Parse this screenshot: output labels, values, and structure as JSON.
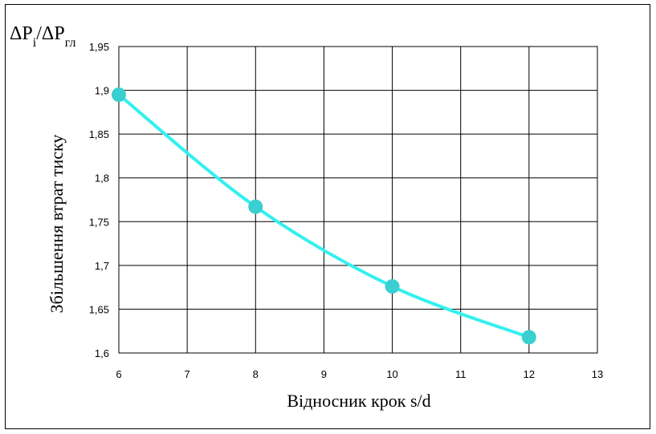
{
  "chart_data": {
    "type": "line",
    "corner_label": {
      "main": "ΔP",
      "sub1": "i",
      "slash": "/ΔP",
      "sub2": "гл"
    },
    "xlabel": "Відносник крок s/d",
    "ylabel": "Збільшення втрат тиску",
    "xlim": [
      6,
      13
    ],
    "ylim": [
      1.6,
      1.95
    ],
    "xticks": [
      6,
      7,
      8,
      9,
      10,
      11,
      12,
      13
    ],
    "xtick_labels": [
      "6",
      "7",
      "8",
      "9",
      "10",
      "11",
      "12",
      "13"
    ],
    "yticks": [
      1.6,
      1.65,
      1.7,
      1.75,
      1.8,
      1.85,
      1.9,
      1.95
    ],
    "ytick_labels": [
      "1,6",
      "1,65",
      "1,7",
      "1,75",
      "1,8",
      "1,85",
      "1,9",
      "1,95"
    ],
    "grid": true,
    "smooth": true,
    "series": [
      {
        "x": [
          6,
          8,
          10,
          12
        ],
        "y": [
          1.895,
          1.767,
          1.676,
          1.618
        ],
        "color": "#33F0F0",
        "marker_color": "#3ACFD0"
      }
    ]
  }
}
